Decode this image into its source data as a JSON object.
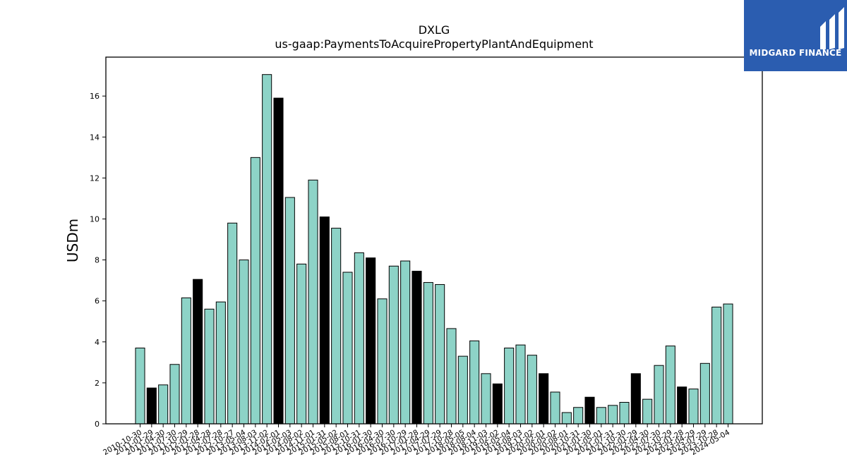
{
  "watermark": {
    "text": "MIDGARD FINANCE",
    "bg_color": "#2b5db0"
  },
  "chart_data": {
    "type": "bar",
    "title": "DXLG",
    "subtitle": "us-gaap:PaymentsToAcquirePropertyPlantAndEquipment",
    "xlabel": "",
    "ylabel": "USDm",
    "ylim": [
      0,
      17.9
    ],
    "yticks": [
      0,
      2,
      4,
      6,
      8,
      10,
      12,
      14,
      16
    ],
    "grid": false,
    "colors": {
      "regular": "#8dd3c7",
      "highlight": "#000000",
      "edge": "#000000"
    },
    "categories": [
      "2010-10-30",
      "2011-01-29",
      "2011-04-30",
      "2011-07-30",
      "2011-10-29",
      "2012-01-28",
      "2012-04-28",
      "2012-07-28",
      "2012-10-27",
      "2013-05-04",
      "2013-08-03",
      "2013-11-02",
      "2014-02-01",
      "2014-05-03",
      "2014-08-02",
      "2014-11-01",
      "2015-01-31",
      "2015-05-02",
      "2015-08-01",
      "2015-10-31",
      "2016-01-30",
      "2016-04-30",
      "2016-07-30",
      "2016-10-29",
      "2017-01-28",
      "2017-04-29",
      "2017-07-29",
      "2017-10-28",
      "2018-05-05",
      "2018-08-04",
      "2018-11-03",
      "2019-02-02",
      "2019-05-04",
      "2019-08-03",
      "2019-11-02",
      "2020-02-01",
      "2020-05-02",
      "2020-08-01",
      "2020-10-31",
      "2021-01-30",
      "2021-05-01",
      "2021-07-31",
      "2021-10-30",
      "2022-01-29",
      "2022-04-30",
      "2022-07-30",
      "2022-10-29",
      "2023-01-28",
      "2023-04-29",
      "2023-07-29",
      "2023-10-28",
      "2024-05-04"
    ],
    "values": [
      3.7,
      1.75,
      1.9,
      2.9,
      6.15,
      7.05,
      5.6,
      5.95,
      9.8,
      8.0,
      13.0,
      17.05,
      15.9,
      11.05,
      7.8,
      11.9,
      10.1,
      9.55,
      7.4,
      8.35,
      8.1,
      6.1,
      7.7,
      7.95,
      7.45,
      6.9,
      6.8,
      4.65,
      3.3,
      4.05,
      2.45,
      1.95,
      3.7,
      3.85,
      3.35,
      2.45,
      1.55,
      0.55,
      0.8,
      1.3,
      0.8,
      0.9,
      1.05,
      2.45,
      1.2,
      2.85,
      3.8,
      1.8,
      1.7,
      2.95,
      5.7,
      5.85
    ],
    "highlight": [
      false,
      true,
      false,
      false,
      false,
      true,
      false,
      false,
      false,
      false,
      false,
      false,
      true,
      false,
      false,
      false,
      true,
      false,
      false,
      false,
      true,
      false,
      false,
      false,
      true,
      false,
      false,
      false,
      false,
      false,
      false,
      true,
      false,
      false,
      false,
      true,
      false,
      false,
      false,
      true,
      false,
      false,
      false,
      true,
      false,
      false,
      false,
      true,
      false,
      false,
      false,
      false
    ]
  }
}
